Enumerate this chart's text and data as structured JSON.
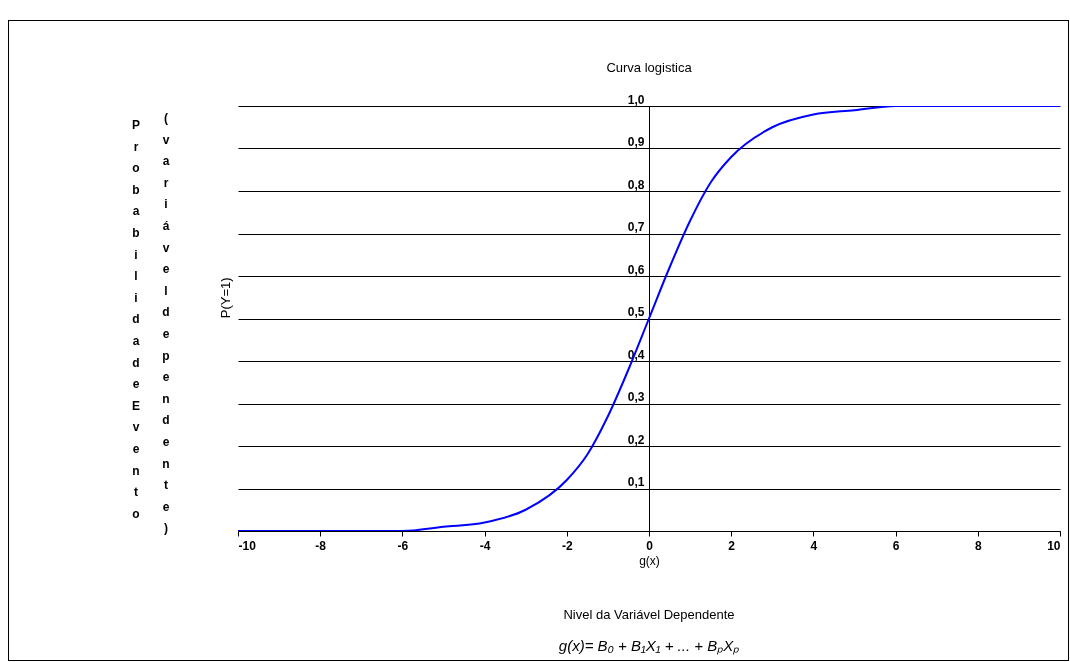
{
  "chart_data": {
    "type": "line",
    "title": "Curva logistica",
    "xlabel": "g(x)",
    "ylabel": "P(Y=1)",
    "annotations": [
      "Probabilidade Evento",
      "(variável dependente)",
      "Nivel da Variável Dependente",
      "g(x)= B₀ + B₁X₁ + ... + BₚXₚ"
    ],
    "x": [
      -10,
      -9,
      -8,
      -7,
      -6,
      -5,
      -4,
      -3,
      -2,
      -1.5,
      -1,
      -0.5,
      0,
      0.5,
      1,
      1.5,
      2,
      3,
      4,
      5,
      6,
      7,
      8,
      9,
      10
    ],
    "series": [
      {
        "color": "#0000ff",
        "values": [
          0.0,
          0.0,
          0.0,
          0.0,
          0.0,
          0.01,
          0.02,
          0.05,
          0.12,
          0.18,
          0.27,
          0.38,
          0.5,
          0.62,
          0.73,
          0.82,
          0.88,
          0.95,
          0.98,
          0.99,
          1.0,
          1.0,
          1.0,
          1.0,
          1.0
        ]
      }
    ],
    "xlim": [
      -10,
      10
    ],
    "xticks": [
      -10,
      -8,
      -6,
      -4,
      -2,
      0,
      2,
      4,
      6,
      8,
      10
    ],
    "ylim": [
      0,
      1
    ],
    "yticks": [
      {
        "value": 0,
        "label": null
      },
      {
        "value": 0.1,
        "label": "0,1"
      },
      {
        "value": 0.2,
        "label": "0,2"
      },
      {
        "value": 0.3,
        "label": "0,3"
      },
      {
        "value": 0.4,
        "label": "0,4"
      },
      {
        "value": 0.5,
        "label": "0,5"
      },
      {
        "value": 0.6,
        "label": "0,6"
      },
      {
        "value": 0.7,
        "label": "0,7"
      },
      {
        "value": 0.8,
        "label": "0,8"
      },
      {
        "value": 0.9,
        "label": "0,9"
      },
      {
        "value": 1.0,
        "label": "1,0"
      }
    ],
    "grid": "y",
    "marker": "none",
    "line_style": "solid"
  }
}
